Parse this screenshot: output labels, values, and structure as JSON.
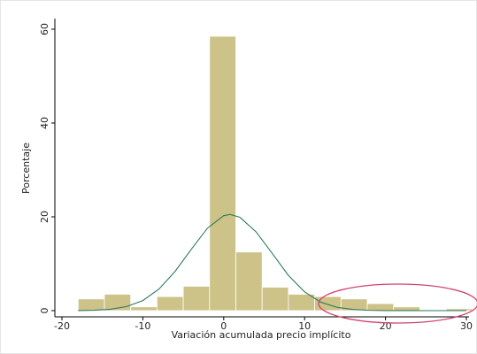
{
  "chart_data": {
    "type": "histogram",
    "x_label": "Variación acumulada precio implícito",
    "y_label": "Porcentaje",
    "bins": [
      -18,
      -14.75,
      -11.5,
      -8.25,
      -5,
      -1.75,
      1.5,
      4.75,
      8,
      11.25,
      14.5,
      17.75,
      21,
      24.25,
      27.5,
      30.75
    ],
    "values": [
      2.5,
      3.5,
      0.8,
      3,
      5.2,
      58.5,
      12.5,
      5,
      3.5,
      3,
      2.5,
      1.5,
      0.8,
      0,
      0.4
    ],
    "color": "#cdc288",
    "curve": {
      "color": "#2f7a5c",
      "x": [
        -18,
        -16,
        -14,
        -12,
        -10,
        -8,
        -6,
        -4,
        -2,
        0,
        0.8,
        2,
        4,
        6,
        8,
        10,
        12,
        14,
        16,
        18,
        20,
        22,
        26,
        30
      ],
      "y": [
        0.02,
        0.09,
        0.3,
        0.87,
        2.15,
        4.6,
        8.4,
        13.1,
        17.6,
        20.25,
        20.5,
        19.9,
        16.8,
        12.2,
        7.5,
        4.0,
        1.8,
        0.71,
        0.24,
        0.07,
        0.02,
        0.005,
        0,
        0
      ]
    },
    "xlim": [
      -20,
      30
    ],
    "xticks": [
      -20,
      -10,
      0,
      10,
      20,
      30
    ],
    "ylim": [
      0,
      60
    ],
    "yticks": [
      0,
      20,
      40,
      60
    ]
  }
}
